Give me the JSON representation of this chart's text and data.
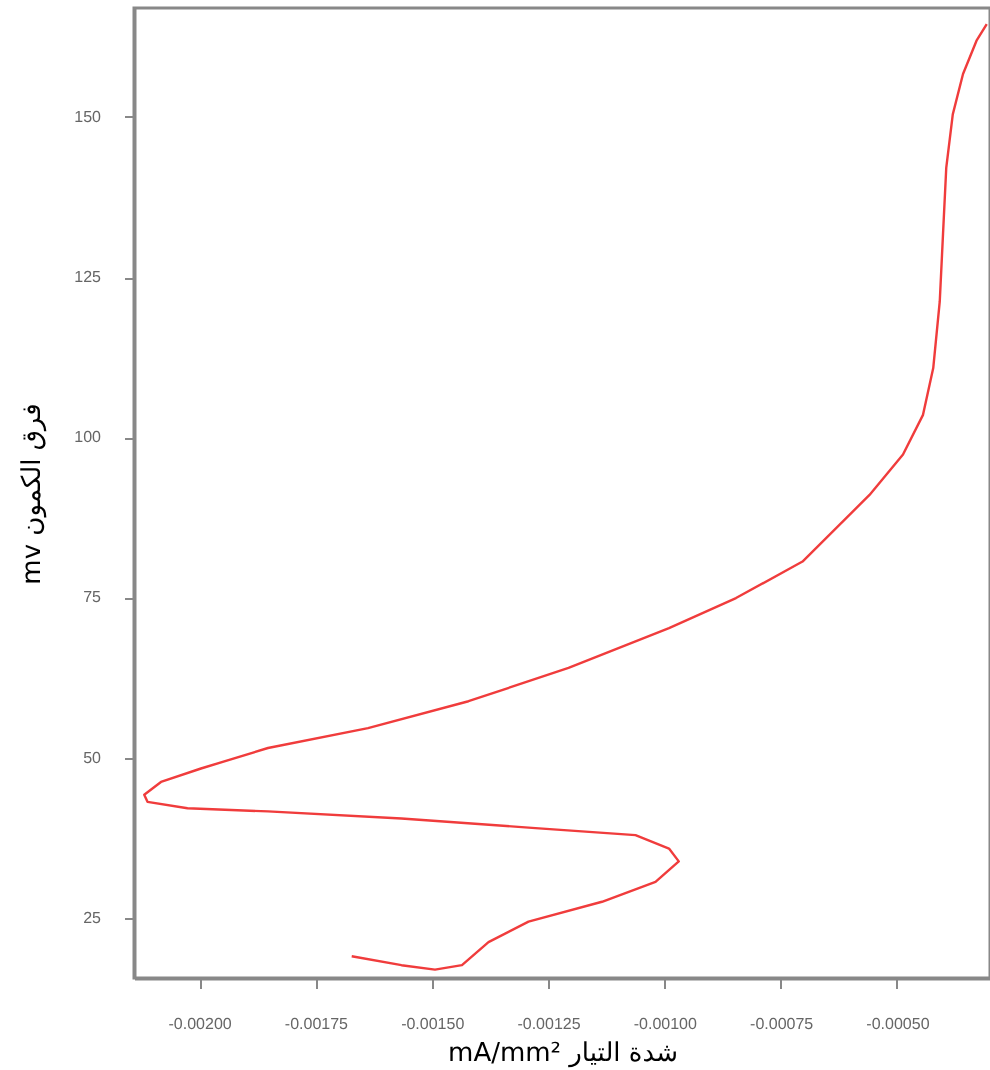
{
  "chart_data": {
    "type": "line",
    "xlabel": "mA/mm² شدة التيار",
    "ylabel": "mv فرق الكمون",
    "x": [
      -0.001672,
      -0.001565,
      -0.001493,
      -0.001435,
      -0.001378,
      -0.001292,
      -0.001134,
      -0.001019,
      -0.000969,
      -0.00099,
      -0.001062,
      -0.001277,
      -0.001565,
      -0.001852,
      -0.002025,
      -0.002111,
      -0.002118,
      -0.002082,
      -0.001996,
      -0.001852,
      -0.001637,
      -0.001421,
      -0.001206,
      -0.00099,
      -0.000846,
      -0.000703,
      -0.000559,
      -0.000487,
      -0.000444,
      -0.000422,
      -0.000408,
      -0.000401,
      -0.000394,
      -0.00038,
      -0.000358,
      -0.000329,
      -0.000307
    ],
    "series": [
      {
        "color": "#f03c3c",
        "values": [
          19.0,
          17.6,
          16.9,
          17.6,
          21.2,
          24.4,
          27.5,
          30.6,
          33.8,
          35.8,
          37.9,
          39.0,
          40.5,
          41.6,
          42.1,
          43.1,
          44.2,
          46.2,
          48.3,
          51.5,
          54.6,
          58.8,
          64.0,
          70.2,
          74.9,
          80.6,
          91.0,
          97.3,
          103.5,
          110.8,
          121.2,
          131.7,
          142.1,
          150.4,
          156.7,
          161.9,
          164.5
        ]
      }
    ],
    "xlim": [
      -0.00214,
      -0.0003
    ],
    "ylim": [
      15.6,
      167
    ],
    "xticks": [
      {
        "value": -0.002,
        "label": "-0.00200"
      },
      {
        "value": -0.00175,
        "label": "-0.00175"
      },
      {
        "value": -0.0015,
        "label": "-0.00150"
      },
      {
        "value": -0.00125,
        "label": "-0.00125"
      },
      {
        "value": -0.001,
        "label": "-0.00100"
      },
      {
        "value": -0.00075,
        "label": "-0.00075"
      },
      {
        "value": -0.0005,
        "label": "-0.00050"
      }
    ],
    "yticks": [
      25,
      50,
      75,
      100,
      125,
      150
    ],
    "grid": false,
    "marker": "none",
    "line_style": "solid"
  }
}
